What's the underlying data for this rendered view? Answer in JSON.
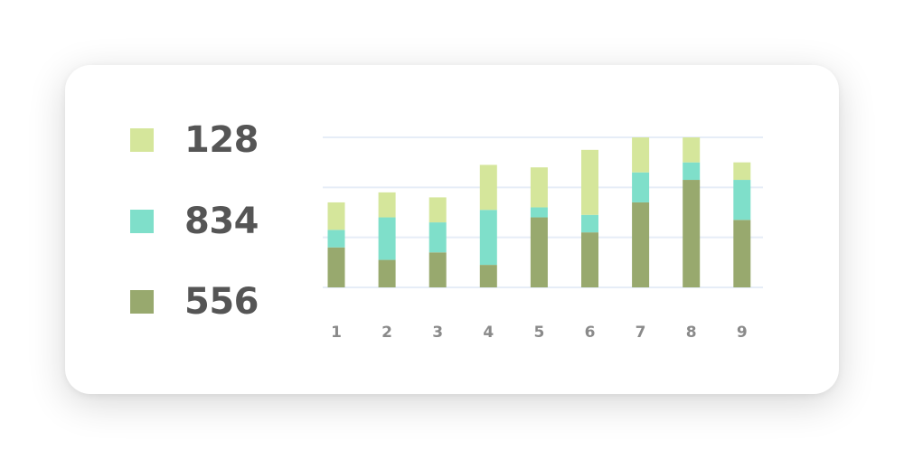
{
  "legend": [
    {
      "value": "128",
      "color": "#d5e69b"
    },
    {
      "value": "834",
      "color": "#7fdfca"
    },
    {
      "value": "556",
      "color": "#98a96e"
    }
  ],
  "chart_data": {
    "type": "bar",
    "stacked": true,
    "categories": [
      "1",
      "2",
      "3",
      "4",
      "5",
      "6",
      "7",
      "8",
      "9"
    ],
    "ylim": [
      0,
      60
    ],
    "grid": true,
    "series": [
      {
        "color": "#98a96e",
        "values": [
          16,
          11,
          14,
          9,
          28,
          22,
          34,
          43,
          27
        ]
      },
      {
        "color": "#7fdfca",
        "values": [
          7,
          17,
          12,
          22,
          4,
          7,
          12,
          7,
          16
        ]
      },
      {
        "color": "#d5e69b",
        "values": [
          11,
          10,
          10,
          18,
          16,
          26,
          14,
          10,
          7
        ]
      }
    ]
  }
}
